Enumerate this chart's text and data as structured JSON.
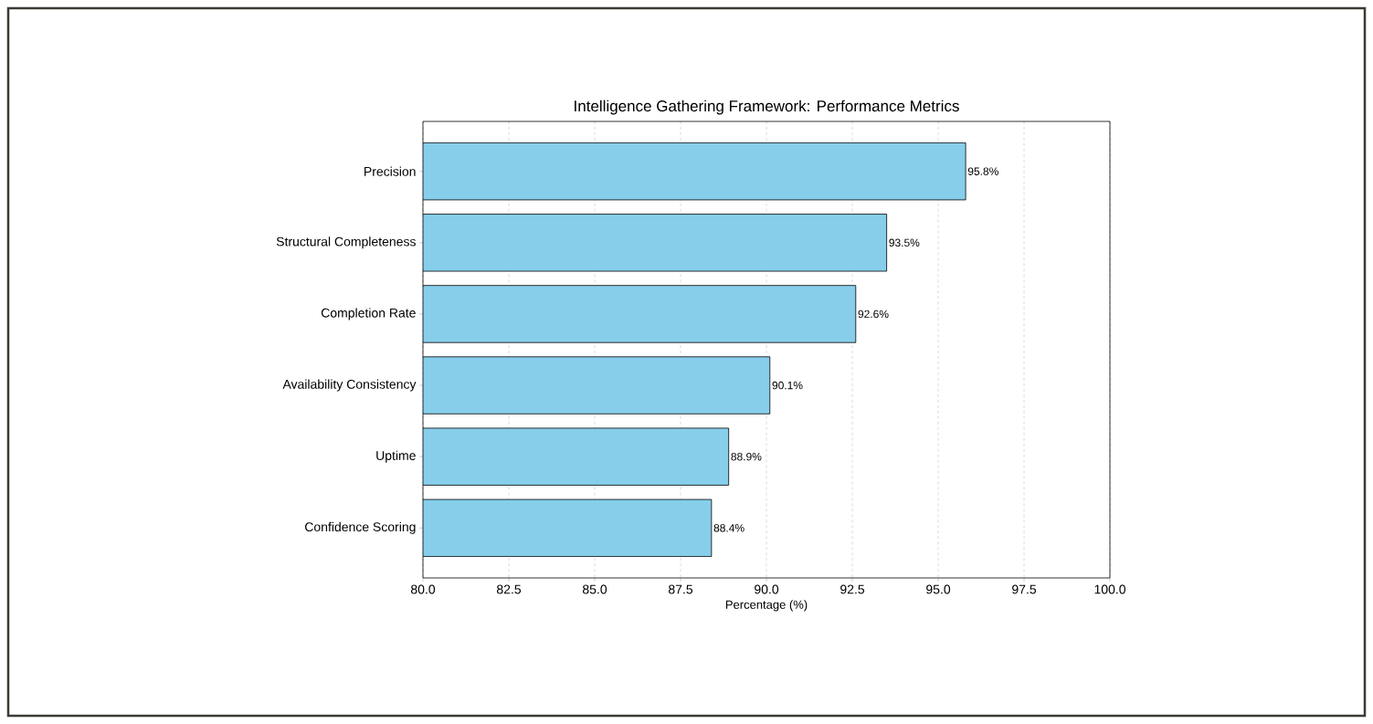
{
  "chart_data": {
    "type": "bar",
    "orientation": "horizontal",
    "title": "Intelligence Gathering Framework: Performance Metrics",
    "xlabel": "Percentage (%)",
    "categories": [
      "Precision",
      "Structural Completeness",
      "Completion Rate",
      "Availability Consistency",
      "Uptime",
      "Confidence Scoring"
    ],
    "values": [
      95.8,
      93.5,
      92.6,
      90.1,
      88.9,
      88.4
    ],
    "value_labels": [
      "95.8%",
      "93.5%",
      "92.6%",
      "90.1%",
      "88.9%",
      "88.4%"
    ],
    "color": "#87ceeb",
    "xlim": [
      80,
      100
    ],
    "xticks": [
      {
        "value": 80,
        "label": "80.0"
      },
      {
        "value": 82.5,
        "label": "82.5"
      },
      {
        "value": 85,
        "label": "85.0"
      },
      {
        "value": 87.5,
        "label": "87.5"
      },
      {
        "value": 90,
        "label": "90.0"
      },
      {
        "value": 92.5,
        "label": "92.5"
      },
      {
        "value": 95,
        "label": "95.0"
      },
      {
        "value": 97.5,
        "label": "97.5"
      },
      {
        "value": 100,
        "label": "100.0"
      }
    ],
    "grid": "x"
  }
}
